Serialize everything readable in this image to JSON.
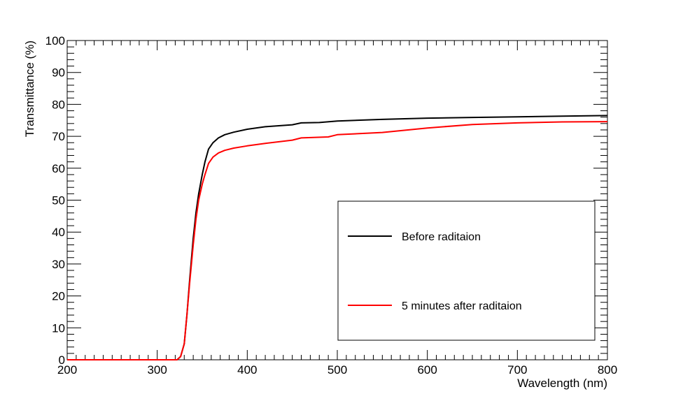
{
  "chart_data": {
    "type": "line",
    "title": "",
    "xlabel": "Wavelength (nm)",
    "ylabel": "Transmittance (%)",
    "xlim": [
      200,
      800
    ],
    "ylim": [
      0,
      100
    ],
    "x_ticks": [
      200,
      300,
      400,
      500,
      600,
      700,
      800
    ],
    "y_ticks": [
      0,
      10,
      20,
      30,
      40,
      50,
      60,
      70,
      80,
      90,
      100
    ],
    "grid": false,
    "legend_position": "bottom-right",
    "series": [
      {
        "name": "Before raditaion",
        "color": "#000000",
        "points": [
          [
            200,
            0
          ],
          [
            295,
            0
          ],
          [
            322,
            0
          ],
          [
            326,
            1
          ],
          [
            330,
            5
          ],
          [
            333,
            14
          ],
          [
            336,
            25
          ],
          [
            340,
            38
          ],
          [
            343,
            46
          ],
          [
            346,
            52
          ],
          [
            350,
            58
          ],
          [
            353,
            62
          ],
          [
            357,
            66
          ],
          [
            362,
            68
          ],
          [
            368,
            69.5
          ],
          [
            375,
            70.5
          ],
          [
            385,
            71.3
          ],
          [
            400,
            72.2
          ],
          [
            420,
            73
          ],
          [
            450,
            73.6
          ],
          [
            460,
            74.2
          ],
          [
            480,
            74.3
          ],
          [
            500,
            74.8
          ],
          [
            550,
            75.3
          ],
          [
            600,
            75.7
          ],
          [
            650,
            75.9
          ],
          [
            700,
            76.1
          ],
          [
            750,
            76.3
          ],
          [
            800,
            76.5
          ]
        ]
      },
      {
        "name": "5 minutes after raditaion",
        "color": "#ff0000",
        "points": [
          [
            200,
            0
          ],
          [
            295,
            0
          ],
          [
            322,
            0
          ],
          [
            326,
            1
          ],
          [
            330,
            5
          ],
          [
            333,
            14
          ],
          [
            336,
            24
          ],
          [
            340,
            36
          ],
          [
            343,
            44
          ],
          [
            346,
            50
          ],
          [
            350,
            55
          ],
          [
            353,
            58
          ],
          [
            357,
            61.5
          ],
          [
            362,
            63.5
          ],
          [
            368,
            64.8
          ],
          [
            375,
            65.6
          ],
          [
            385,
            66.3
          ],
          [
            400,
            67
          ],
          [
            420,
            67.8
          ],
          [
            450,
            68.8
          ],
          [
            460,
            69.5
          ],
          [
            490,
            69.8
          ],
          [
            500,
            70.5
          ],
          [
            550,
            71.2
          ],
          [
            600,
            72.6
          ],
          [
            650,
            73.7
          ],
          [
            700,
            74.2
          ],
          [
            750,
            74.5
          ],
          [
            800,
            74.6
          ]
        ]
      }
    ]
  }
}
